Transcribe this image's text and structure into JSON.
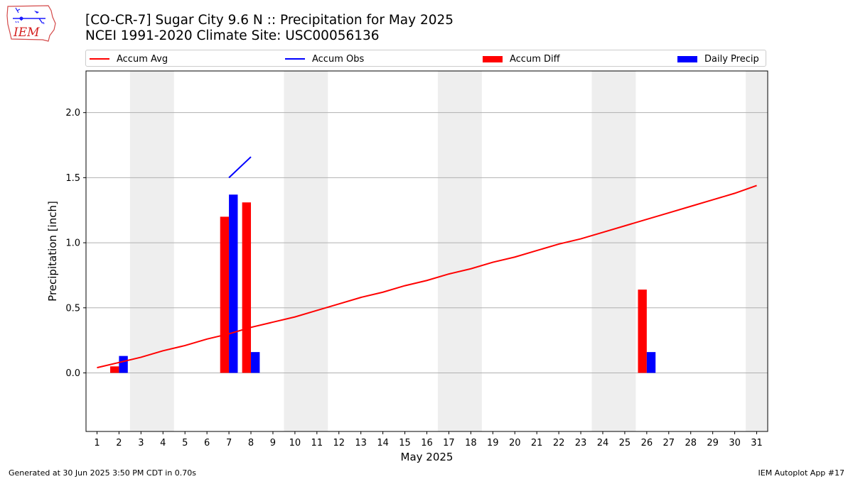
{
  "header": {
    "title_line1": "[CO-CR-7] Sugar City 9.6 N :: Precipitation for May 2025",
    "title_line2": "NCEI 1991-2020 Climate Site: USC00056136",
    "logo_text": "IEM"
  },
  "footer": {
    "generated": "Generated at 30 Jun 2025 3:50 PM CDT in 0.70s",
    "app": "IEM Autoplot App #17"
  },
  "legend": [
    {
      "label": "Accum Avg",
      "kind": "line",
      "color": "#ff0000"
    },
    {
      "label": "Accum Obs",
      "kind": "line",
      "color": "#0000ff"
    },
    {
      "label": "Accum Diff",
      "kind": "bar",
      "color": "#ff0000"
    },
    {
      "label": "Daily Precip",
      "kind": "bar",
      "color": "#0000ff"
    }
  ],
  "chart_data": {
    "type": "bar",
    "xlabel": "May 2025",
    "ylabel": "Precipitation [inch]",
    "xlim": [
      0.5,
      31.5
    ],
    "ylim": [
      -0.45,
      2.32
    ],
    "yticks": [
      0.0,
      0.5,
      1.0,
      1.5,
      2.0
    ],
    "ytick_labels": [
      "0.0",
      "0.5",
      "1.0",
      "1.5",
      "2.0"
    ],
    "grid": "horizontal",
    "days": [
      1,
      2,
      3,
      4,
      5,
      6,
      7,
      8,
      9,
      10,
      11,
      12,
      13,
      14,
      15,
      16,
      17,
      18,
      19,
      20,
      21,
      22,
      23,
      24,
      25,
      26,
      27,
      28,
      29,
      30,
      31
    ],
    "weekend_bands": [
      [
        3,
        4
      ],
      [
        10,
        11
      ],
      [
        17,
        18
      ],
      [
        24,
        25
      ],
      [
        31,
        31
      ]
    ],
    "accum_avg": {
      "name": "Accum Avg",
      "color": "#ff0000",
      "values": [
        0.04,
        0.08,
        0.12,
        0.17,
        0.21,
        0.26,
        0.3,
        0.35,
        0.39,
        0.43,
        0.48,
        0.53,
        0.58,
        0.62,
        0.67,
        0.71,
        0.76,
        0.8,
        0.85,
        0.89,
        0.94,
        0.99,
        1.03,
        1.08,
        1.13,
        1.18,
        1.23,
        1.28,
        1.33,
        1.38,
        1.44
      ]
    },
    "accum_obs": {
      "name": "Accum Obs",
      "color": "#0000ff",
      "x": [
        7,
        8
      ],
      "values": [
        1.5,
        1.66
      ]
    },
    "accum_diff": {
      "name": "Accum Diff",
      "color": "#ff0000",
      "x": [
        2,
        7,
        8,
        26
      ],
      "values": [
        0.05,
        1.2,
        1.31,
        0.64
      ]
    },
    "daily_precip": {
      "name": "Daily Precip",
      "color": "#0000ff",
      "x": [
        2,
        7,
        8,
        26
      ],
      "values": [
        0.13,
        1.37,
        0.16,
        0.16
      ]
    }
  }
}
